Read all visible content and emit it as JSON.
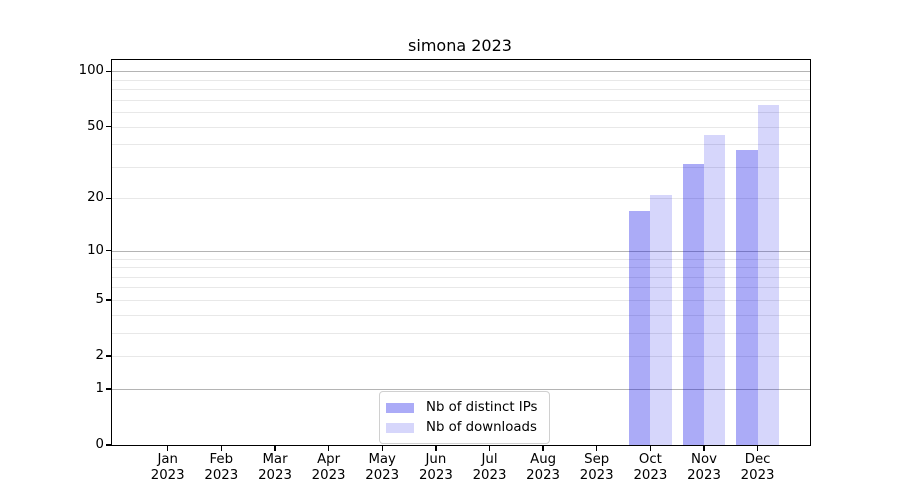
{
  "chart_data": {
    "type": "bar",
    "title": "simona 2023",
    "categories": [
      "Jan 2023",
      "Feb 2023",
      "Mar 2023",
      "Apr 2023",
      "May 2023",
      "Jun 2023",
      "Jul 2023",
      "Aug 2023",
      "Sep 2023",
      "Oct 2023",
      "Nov 2023",
      "Dec 2023"
    ],
    "series": [
      {
        "name": "Nb of distinct IPs",
        "color": "rgba(0,0,230,0.33)",
        "values": [
          0,
          0,
          0,
          0,
          0,
          0,
          0,
          0,
          0,
          17,
          31,
          37
        ]
      },
      {
        "name": "Nb of downloads",
        "color": "rgba(0,0,230,0.16)",
        "values": [
          0,
          0,
          0,
          0,
          0,
          0,
          0,
          0,
          0,
          21,
          45,
          66
        ]
      }
    ],
    "xlabel": "",
    "ylabel": "",
    "yscale": "log1p",
    "ylim": [
      0,
      115
    ],
    "yticks": [
      0,
      1,
      2,
      5,
      10,
      20,
      50,
      100
    ],
    "grid_major": [
      1,
      10,
      100
    ],
    "grid_minor": [
      2,
      3,
      4,
      5,
      6,
      7,
      8,
      9,
      20,
      30,
      40,
      50,
      60,
      70,
      80,
      90
    ],
    "grid": "on",
    "legend_position": "bottom-center",
    "colors": {
      "axis": "#000000",
      "grid_major": "#b4b4b4",
      "grid_minor": "#e8e8e8",
      "legend_border": "#d0d0d0"
    }
  }
}
